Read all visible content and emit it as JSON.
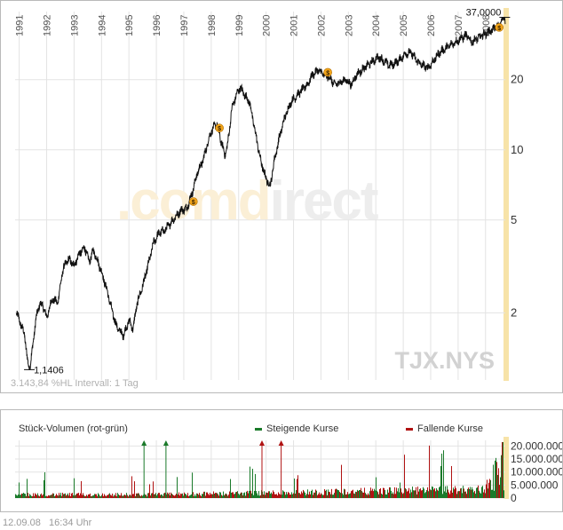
{
  "chart_data": [
    {
      "type": "line",
      "scale": "log",
      "x_year_labels": [
        "1991",
        "1992",
        "1993",
        "1994",
        "1995",
        "1996",
        "1997",
        "1998",
        "1999",
        "2000",
        "2001",
        "2002",
        "2003",
        "2004",
        "2005",
        "2006",
        "2007",
        "2008"
      ],
      "y_tick_labels": [
        "20",
        "10",
        "5",
        "2"
      ],
      "y_ticks": [
        20,
        10,
        5,
        2
      ],
      "ylim": [
        1.03,
        38.5
      ],
      "min_label": "1,1406",
      "max_label": "37,0000",
      "min_value": 1.1406,
      "max_value": 37.0,
      "ticker": "TJX.NYS",
      "info": "3.143,84 %HL  Intervall: 1 Tag",
      "watermark": ".comdirect",
      "grid": true,
      "series": [
        {
          "points": [
            [
              1990.9,
              2.0
            ],
            [
              1991.05,
              1.8
            ],
            [
              1991.2,
              1.6
            ],
            [
              1991.3,
              1.25
            ],
            [
              1991.37,
              1.14
            ],
            [
              1991.45,
              1.3
            ],
            [
              1991.6,
              1.85
            ],
            [
              1991.75,
              2.2
            ],
            [
              1991.9,
              2.1
            ],
            [
              1992.0,
              1.9
            ],
            [
              1992.2,
              2.3
            ],
            [
              1992.4,
              2.2
            ],
            [
              1992.5,
              2.6
            ],
            [
              1992.6,
              3.1
            ],
            [
              1992.8,
              3.4
            ],
            [
              1993.0,
              3.2
            ],
            [
              1993.2,
              3.6
            ],
            [
              1993.4,
              3.8
            ],
            [
              1993.55,
              3.3
            ],
            [
              1993.7,
              3.7
            ],
            [
              1993.8,
              3.5
            ],
            [
              1994.0,
              3.0
            ],
            [
              1994.2,
              2.5
            ],
            [
              1994.4,
              2.0
            ],
            [
              1994.55,
              1.75
            ],
            [
              1994.7,
              1.65
            ],
            [
              1994.8,
              1.6
            ],
            [
              1995.0,
              1.85
            ],
            [
              1995.15,
              1.7
            ],
            [
              1995.3,
              2.2
            ],
            [
              1995.5,
              2.6
            ],
            [
              1995.7,
              3.2
            ],
            [
              1995.9,
              4.0
            ],
            [
              1996.1,
              4.4
            ],
            [
              1996.3,
              4.5
            ],
            [
              1996.6,
              5.0
            ],
            [
              1996.9,
              5.5
            ],
            [
              1997.1,
              5.6
            ],
            [
              1997.3,
              6.5
            ],
            [
              1997.5,
              8.0
            ],
            [
              1997.7,
              9.0
            ],
            [
              1997.9,
              11.0
            ],
            [
              1998.0,
              12.0
            ],
            [
              1998.2,
              13.0
            ],
            [
              1998.35,
              11.0
            ],
            [
              1998.5,
              9.5
            ],
            [
              1998.6,
              10.5
            ],
            [
              1998.75,
              15.0
            ],
            [
              1998.9,
              17.0
            ],
            [
              1999.05,
              18.5
            ],
            [
              1999.25,
              17.0
            ],
            [
              1999.4,
              16.0
            ],
            [
              1999.6,
              12.0
            ],
            [
              1999.8,
              9.0
            ],
            [
              2000.0,
              7.5
            ],
            [
              2000.15,
              7.0
            ],
            [
              2000.3,
              9.0
            ],
            [
              2000.5,
              11.5
            ],
            [
              2000.7,
              14.0
            ],
            [
              2000.9,
              16.0
            ],
            [
              2001.1,
              17.0
            ],
            [
              2001.3,
              18.0
            ],
            [
              2001.5,
              19.0
            ],
            [
              2001.7,
              21.0
            ],
            [
              2001.9,
              22.0
            ],
            [
              2002.1,
              21.0
            ],
            [
              2002.3,
              20.5
            ],
            [
              2002.5,
              19.0
            ],
            [
              2002.7,
              19.5
            ],
            [
              2002.9,
              20.0
            ],
            [
              2003.1,
              19.0
            ],
            [
              2003.3,
              21.0
            ],
            [
              2003.5,
              22.0
            ],
            [
              2003.7,
              23.0
            ],
            [
              2003.9,
              24.0
            ],
            [
              2004.1,
              25.0
            ],
            [
              2004.3,
              24.0
            ],
            [
              2004.5,
              23.0
            ],
            [
              2004.7,
              23.5
            ],
            [
              2004.9,
              24.5
            ],
            [
              2005.1,
              26.0
            ],
            [
              2005.3,
              26.0
            ],
            [
              2005.5,
              24.0
            ],
            [
              2005.7,
              23.0
            ],
            [
              2005.9,
              22.5
            ],
            [
              2006.1,
              24.0
            ],
            [
              2006.3,
              26.0
            ],
            [
              2006.5,
              27.0
            ],
            [
              2006.7,
              28.0
            ],
            [
              2006.9,
              29.0
            ],
            [
              2007.1,
              30.0
            ],
            [
              2007.3,
              31.0
            ],
            [
              2007.5,
              29.0
            ],
            [
              2007.7,
              30.0
            ],
            [
              2007.9,
              31.0
            ],
            [
              2008.1,
              32.0
            ],
            [
              2008.3,
              33.0
            ],
            [
              2008.5,
              34.0
            ],
            [
              2008.6,
              36.0
            ],
            [
              2008.7,
              37.0
            ],
            [
              2008.72,
              35.5
            ]
          ]
        }
      ],
      "dividend_markers_x": [
        1997.35,
        1998.3,
        2002.25,
        2008.5
      ]
    },
    {
      "type": "bar",
      "title": "Stück-Volumen (rot-grün)",
      "legend": [
        {
          "label": "Steigende Kurse",
          "color": "#1a7a2a"
        },
        {
          "label": "Fallende Kurse",
          "color": "#b01212"
        }
      ],
      "y_tick_labels": [
        "20.000.000",
        "15.000.000",
        "10.000.000",
        "5.000.000",
        "0"
      ],
      "y_ticks": [
        20000000,
        15000000,
        10000000,
        5000000,
        0
      ],
      "ylim": [
        0,
        21500000
      ],
      "overflow_markers": [
        {
          "x": 1995.55,
          "color": "#1a7a2a"
        },
        {
          "x": 1996.35,
          "color": "#1a7a2a"
        },
        {
          "x": 1999.85,
          "color": "#b01212"
        },
        {
          "x": 2000.55,
          "color": "#b01212"
        }
      ]
    }
  ],
  "colors": {
    "up": "#1a7a2a",
    "down": "#b01212",
    "grid": "#e3e3e3",
    "marker": "#f2a51a",
    "current_band": "#f7e3a8"
  },
  "footer": {
    "date": "12.09.08",
    "time": "16:34 Uhr"
  }
}
